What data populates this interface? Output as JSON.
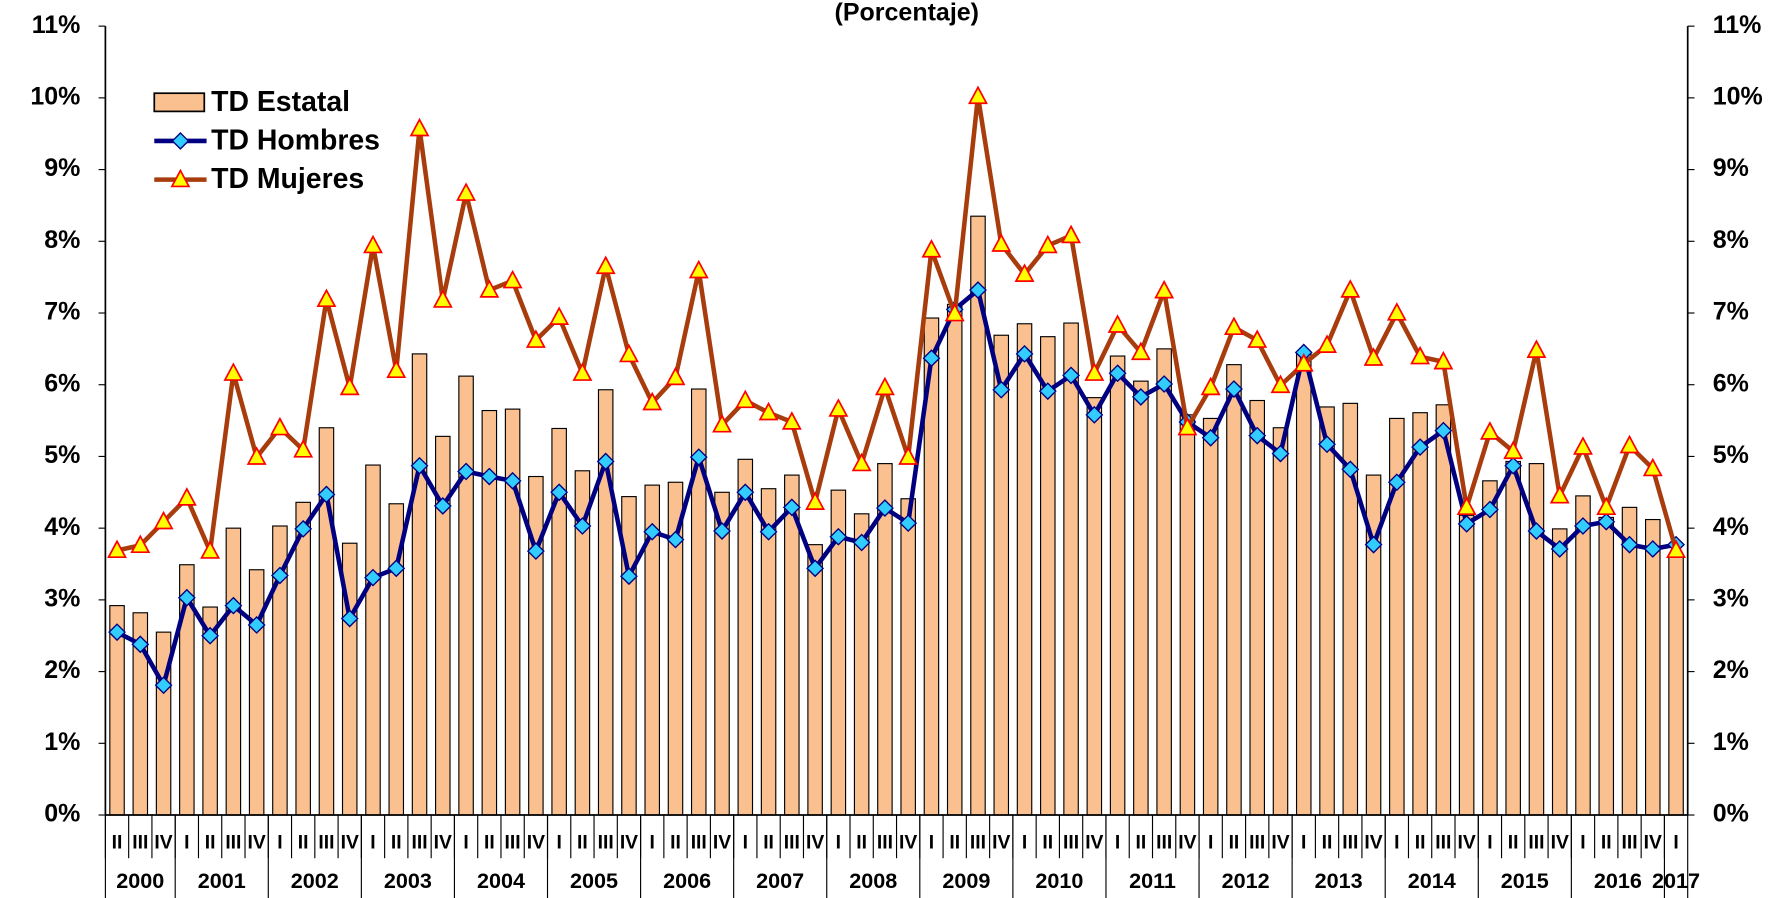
{
  "chart_data": {
    "type": "bar-line",
    "title": "(Porcentaje)",
    "groups": [
      {
        "label": "2000",
        "quarters": [
          "II",
          "III",
          "IV"
        ]
      },
      {
        "label": "2001",
        "quarters": [
          "I",
          "II",
          "III",
          "IV"
        ]
      },
      {
        "label": "2002",
        "quarters": [
          "I",
          "II",
          "III",
          "IV"
        ]
      },
      {
        "label": "2003",
        "quarters": [
          "I",
          "II",
          "III",
          "IV"
        ]
      },
      {
        "label": "2004",
        "quarters": [
          "I",
          "II",
          "III",
          "IV"
        ]
      },
      {
        "label": "2005",
        "quarters": [
          "I",
          "II",
          "III",
          "IV"
        ]
      },
      {
        "label": "2006",
        "quarters": [
          "I",
          "II",
          "III",
          "IV"
        ]
      },
      {
        "label": "2007",
        "quarters": [
          "I",
          "II",
          "III",
          "IV"
        ]
      },
      {
        "label": "2008",
        "quarters": [
          "I",
          "II",
          "III",
          "IV"
        ]
      },
      {
        "label": "2009",
        "quarters": [
          "I",
          "II",
          "III",
          "IV"
        ]
      },
      {
        "label": "2010",
        "quarters": [
          "I",
          "II",
          "III",
          "IV"
        ]
      },
      {
        "label": "2011",
        "quarters": [
          "I",
          "II",
          "III",
          "IV"
        ]
      },
      {
        "label": "2012",
        "quarters": [
          "I",
          "II",
          "III",
          "IV"
        ]
      },
      {
        "label": "2013",
        "quarters": [
          "I",
          "II",
          "III",
          "IV"
        ]
      },
      {
        "label": "2014",
        "quarters": [
          "I",
          "II",
          "III",
          "IV"
        ]
      },
      {
        "label": "2015",
        "quarters": [
          "I",
          "II",
          "III",
          "IV"
        ]
      },
      {
        "label": "2016",
        "quarters": [
          "I",
          "II",
          "III",
          "IV"
        ]
      },
      {
        "label": "2017",
        "quarters": [
          "I"
        ]
      }
    ],
    "series": [
      {
        "name": "TD Estatal",
        "kind": "bar",
        "color": "#fac090",
        "values": [
          2.92,
          2.82,
          2.55,
          3.49,
          2.9,
          4.0,
          3.42,
          4.03,
          4.36,
          5.4,
          3.79,
          4.88,
          4.34,
          6.43,
          5.28,
          6.12,
          5.64,
          5.66,
          4.72,
          5.39,
          4.8,
          5.93,
          4.44,
          4.6,
          4.64,
          5.94,
          4.5,
          4.96,
          4.55,
          4.74,
          3.77,
          4.53,
          4.2,
          4.9,
          4.41,
          6.93,
          7.12,
          8.35,
          6.69,
          6.85,
          6.67,
          6.86,
          5.82,
          6.4,
          6.05,
          6.5,
          5.58,
          5.53,
          6.28,
          5.78,
          5.4,
          6.43,
          5.69,
          5.74,
          4.74,
          5.53,
          5.61,
          5.72,
          4.18,
          4.66,
          4.93,
          4.9,
          3.99,
          4.45,
          4.15,
          4.29,
          4.12,
          3.63
        ]
      },
      {
        "name": "TD Hombres",
        "kind": "line",
        "color": "#000080",
        "marker": "diamond",
        "marker_color": "#33ccff",
        "values": [
          2.55,
          2.38,
          1.81,
          3.03,
          2.5,
          2.92,
          2.65,
          3.34,
          3.99,
          4.47,
          2.74,
          3.31,
          3.44,
          4.87,
          4.31,
          4.79,
          4.72,
          4.66,
          3.68,
          4.5,
          4.03,
          4.93,
          3.33,
          3.95,
          3.84,
          4.99,
          3.96,
          4.5,
          3.95,
          4.29,
          3.44,
          3.88,
          3.8,
          4.28,
          4.07,
          6.37,
          7.05,
          7.32,
          5.93,
          6.43,
          5.91,
          6.13,
          5.58,
          6.16,
          5.83,
          6.01,
          5.48,
          5.26,
          5.94,
          5.29,
          5.04,
          6.45,
          5.17,
          4.82,
          3.77,
          4.64,
          5.13,
          5.36,
          4.06,
          4.26,
          4.87,
          3.96,
          3.71,
          4.03,
          4.09,
          3.77,
          3.71,
          3.77
        ]
      },
      {
        "name": "TD Mujeres",
        "kind": "line",
        "color": "#a83c0c",
        "marker": "triangle",
        "marker_color": "#ffff00",
        "values": [
          3.69,
          3.76,
          4.09,
          4.42,
          3.68,
          6.16,
          4.99,
          5.4,
          5.09,
          7.19,
          5.96,
          7.94,
          6.2,
          9.57,
          7.18,
          8.67,
          7.32,
          7.45,
          6.62,
          6.94,
          6.16,
          7.65,
          6.42,
          5.75,
          6.1,
          7.59,
          5.44,
          5.78,
          5.61,
          5.48,
          4.36,
          5.66,
          4.9,
          5.96,
          4.99,
          7.88,
          6.99,
          10.02,
          7.96,
          7.54,
          7.94,
          8.08,
          6.16,
          6.83,
          6.45,
          7.31,
          5.4,
          5.96,
          6.8,
          6.62,
          5.99,
          6.29,
          6.55,
          7.32,
          6.37,
          7.0,
          6.39,
          6.32,
          4.29,
          5.34,
          5.07,
          6.48,
          4.45,
          5.13,
          4.29,
          5.15,
          4.83,
          3.69
        ]
      }
    ],
    "ylim": [
      0,
      11
    ],
    "yticks": [
      {
        "value": 0,
        "label": "0%"
      },
      {
        "value": 1,
        "label": "1%"
      },
      {
        "value": 2,
        "label": "2%"
      },
      {
        "value": 3,
        "label": "3%"
      },
      {
        "value": 4,
        "label": "4%"
      },
      {
        "value": 5,
        "label": "5%"
      },
      {
        "value": 6,
        "label": "6%"
      },
      {
        "value": 7,
        "label": "7%"
      },
      {
        "value": 8,
        "label": "8%"
      },
      {
        "value": 9,
        "label": "9%"
      },
      {
        "value": 10,
        "label": "10%"
      },
      {
        "value": 11,
        "label": "11%"
      }
    ],
    "y2lim": [
      0,
      11
    ],
    "y2ticks": [
      {
        "value": 0,
        "label": "0%"
      },
      {
        "value": 1,
        "label": "1%"
      },
      {
        "value": 2,
        "label": "2%"
      },
      {
        "value": 3,
        "label": "3%"
      },
      {
        "value": 4,
        "label": "4%"
      },
      {
        "value": 5,
        "label": "5%"
      },
      {
        "value": 6,
        "label": "6%"
      },
      {
        "value": 7,
        "label": "7%"
      },
      {
        "value": 8,
        "label": "8%"
      },
      {
        "value": 9,
        "label": "9%"
      },
      {
        "value": 10,
        "label": "10%"
      },
      {
        "value": 11,
        "label": "11%"
      }
    ],
    "legend": "upper left"
  }
}
